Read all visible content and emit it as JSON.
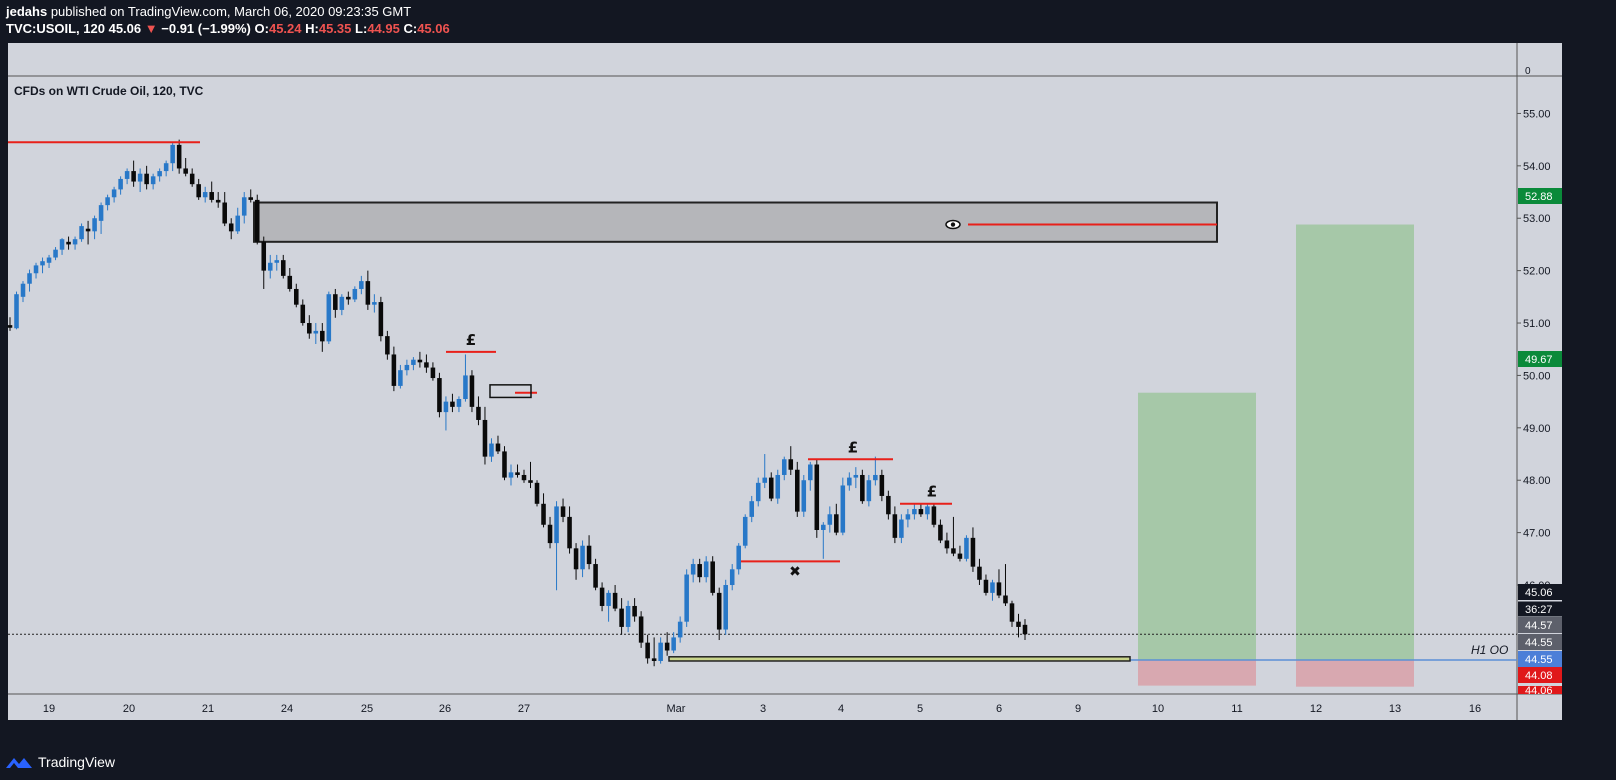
{
  "header": {
    "publisher": "jedahs",
    "published_text": "published on TradingView.com, March 06, 2020 09:23:35 GMT",
    "symbol": "TVC:USOIL, 120",
    "last": "45.06",
    "change_arrow": "▼",
    "change": "−0.91 (−1.99%)",
    "o_label": "O:",
    "o": "45.24",
    "h_label": "H:",
    "h": "45.35",
    "l_label": "L:",
    "l": "44.95",
    "c_label": "C:",
    "c": "45.06"
  },
  "chart_title": "CFDs on WTI Crude Oil, 120, TVC",
  "footer": {
    "brand": "TradingView",
    "logo_icon": "tradingview-logo-icon"
  },
  "colors": {
    "background": "#131722",
    "pane": "#d1d4dc",
    "up": "#2878c8",
    "down": "#0a0a0a",
    "red_line": "#e8201a",
    "green_zone": "#a6c8a8",
    "red_zone": "#d8a8b0",
    "zone_grey": "#b5b6ba",
    "yellow_box": "#c8d48a",
    "blue_line": "#5a8fd6"
  },
  "chart_data": {
    "type": "candlestick",
    "title": "CFDs on WTI Crude Oil, 120, TVC",
    "ylim": [
      43.92,
      55.6
    ],
    "y_ticks": [
      55.0,
      54.0,
      53.0,
      52.0,
      51.0,
      50.0,
      49.0,
      48.0,
      47.0,
      46.0
    ],
    "x_ticks": [
      "19",
      "20",
      "21",
      "24",
      "25",
      "26",
      "27",
      "Mar",
      "3",
      "4",
      "5",
      "6",
      "9",
      "10",
      "11",
      "12",
      "13",
      "16"
    ],
    "indicator_pane_label": "0",
    "last_price": 45.06,
    "countdown": "36:27",
    "series": [
      {
        "name": "TVC:USOIL",
        "values": [
          [
            50.96,
            51.11,
            50.85,
            50.91
          ],
          [
            50.9,
            51.6,
            50.88,
            51.55
          ],
          [
            51.5,
            51.8,
            51.4,
            51.75
          ],
          [
            51.75,
            52.02,
            51.6,
            51.95
          ],
          [
            51.95,
            52.15,
            51.85,
            52.1
          ],
          [
            52.1,
            52.25,
            51.95,
            52.18
          ],
          [
            52.15,
            52.3,
            52.05,
            52.25
          ],
          [
            52.25,
            52.45,
            52.2,
            52.4
          ],
          [
            52.4,
            52.62,
            52.3,
            52.6
          ],
          [
            52.55,
            52.65,
            52.4,
            52.5
          ],
          [
            52.5,
            52.65,
            52.4,
            52.6
          ],
          [
            52.6,
            52.9,
            52.55,
            52.85
          ],
          [
            52.8,
            52.95,
            52.5,
            52.75
          ],
          [
            52.75,
            53.05,
            52.6,
            53.0
          ],
          [
            52.95,
            53.3,
            52.7,
            53.25
          ],
          [
            53.25,
            53.45,
            53.15,
            53.4
          ],
          [
            53.4,
            53.6,
            53.3,
            53.55
          ],
          [
            53.55,
            53.8,
            53.45,
            53.75
          ],
          [
            53.75,
            53.95,
            53.65,
            53.9
          ],
          [
            53.9,
            54.1,
            53.6,
            53.7
          ],
          [
            53.7,
            53.95,
            53.5,
            53.85
          ],
          [
            53.85,
            54.0,
            53.55,
            53.65
          ],
          [
            53.65,
            53.85,
            53.55,
            53.8
          ],
          [
            53.8,
            53.95,
            53.7,
            53.9
          ],
          [
            53.9,
            54.1,
            53.8,
            54.05
          ],
          [
            54.05,
            54.45,
            53.9,
            54.4
          ],
          [
            54.4,
            54.5,
            53.85,
            53.95
          ],
          [
            53.95,
            54.15,
            53.8,
            53.85
          ],
          [
            53.85,
            53.95,
            53.6,
            53.65
          ],
          [
            53.65,
            53.75,
            53.35,
            53.4
          ],
          [
            53.4,
            53.6,
            53.3,
            53.5
          ],
          [
            53.5,
            53.7,
            53.3,
            53.35
          ],
          [
            53.35,
            53.5,
            53.2,
            53.3
          ],
          [
            53.3,
            53.5,
            52.85,
            52.9
          ],
          [
            52.9,
            53.0,
            52.6,
            52.75
          ],
          [
            52.75,
            53.2,
            52.7,
            53.05
          ],
          [
            53.05,
            53.5,
            52.9,
            53.4
          ],
          [
            53.4,
            53.55,
            53.3,
            53.35
          ],
          [
            53.35,
            53.45,
            52.5,
            52.55
          ],
          [
            52.55,
            52.65,
            51.65,
            52.0
          ],
          [
            52.0,
            52.3,
            51.85,
            52.15
          ],
          [
            52.15,
            52.3,
            52.0,
            52.2
          ],
          [
            52.2,
            52.3,
            51.85,
            51.9
          ],
          [
            51.9,
            52.05,
            51.6,
            51.65
          ],
          [
            51.65,
            51.75,
            51.3,
            51.35
          ],
          [
            51.35,
            51.45,
            50.95,
            51.0
          ],
          [
            51.0,
            51.15,
            50.7,
            50.8
          ],
          [
            50.8,
            51.0,
            50.6,
            50.85
          ],
          [
            50.85,
            51.0,
            50.45,
            50.65
          ],
          [
            50.65,
            51.6,
            50.6,
            51.55
          ],
          [
            51.55,
            51.65,
            51.1,
            51.25
          ],
          [
            51.25,
            51.55,
            51.15,
            51.5
          ],
          [
            51.5,
            51.6,
            51.35,
            51.45
          ],
          [
            51.45,
            51.7,
            51.4,
            51.65
          ],
          [
            51.65,
            51.9,
            51.55,
            51.8
          ],
          [
            51.8,
            52.0,
            51.25,
            51.35
          ],
          [
            51.35,
            51.55,
            51.2,
            51.4
          ],
          [
            51.4,
            51.5,
            50.65,
            50.75
          ],
          [
            50.75,
            50.85,
            50.3,
            50.4
          ],
          [
            50.4,
            50.55,
            49.7,
            49.8
          ],
          [
            49.8,
            50.2,
            49.75,
            50.1
          ],
          [
            50.1,
            50.3,
            50.0,
            50.2
          ],
          [
            50.2,
            50.35,
            50.1,
            50.3
          ],
          [
            50.3,
            50.45,
            50.15,
            50.25
          ],
          [
            50.25,
            50.4,
            50.05,
            50.15
          ],
          [
            50.15,
            50.25,
            49.9,
            49.95
          ],
          [
            49.95,
            50.05,
            49.2,
            49.3
          ],
          [
            49.3,
            49.6,
            48.95,
            49.5
          ],
          [
            49.5,
            49.65,
            49.3,
            49.4
          ],
          [
            49.4,
            49.6,
            49.3,
            49.55
          ],
          [
            49.55,
            50.4,
            49.5,
            50.0
          ],
          [
            50.0,
            50.1,
            49.3,
            49.4
          ],
          [
            49.4,
            49.6,
            49.05,
            49.15
          ],
          [
            49.15,
            49.4,
            48.3,
            48.45
          ],
          [
            48.45,
            48.8,
            48.35,
            48.7
          ],
          [
            48.7,
            48.85,
            48.5,
            48.55
          ],
          [
            48.55,
            48.65,
            48.0,
            48.05
          ],
          [
            48.05,
            48.3,
            47.9,
            48.15
          ],
          [
            48.15,
            48.3,
            48.05,
            48.1
          ],
          [
            48.1,
            48.2,
            47.95,
            48.0
          ],
          [
            48.0,
            48.35,
            47.85,
            47.95
          ],
          [
            47.95,
            48.0,
            47.5,
            47.55
          ],
          [
            47.55,
            47.75,
            47.1,
            47.15
          ],
          [
            47.15,
            47.3,
            46.7,
            46.8
          ],
          [
            46.8,
            47.6,
            45.9,
            47.5
          ],
          [
            47.5,
            47.65,
            47.2,
            47.3
          ],
          [
            47.3,
            47.5,
            46.6,
            46.7
          ],
          [
            46.7,
            46.8,
            46.1,
            46.3
          ],
          [
            46.3,
            46.85,
            46.15,
            46.75
          ],
          [
            46.75,
            46.95,
            46.3,
            46.4
          ],
          [
            46.4,
            46.5,
            45.9,
            45.95
          ],
          [
            45.95,
            46.05,
            45.5,
            45.6
          ],
          [
            45.6,
            45.9,
            45.3,
            45.85
          ],
          [
            45.85,
            46.0,
            45.5,
            45.55
          ],
          [
            45.55,
            45.75,
            45.05,
            45.2
          ],
          [
            45.2,
            45.7,
            45.1,
            45.6
          ],
          [
            45.6,
            45.75,
            45.3,
            45.4
          ],
          [
            45.4,
            45.5,
            44.8,
            44.9
          ],
          [
            44.9,
            45.05,
            44.5,
            44.6
          ],
          [
            44.6,
            45.0,
            44.45,
            44.55
          ],
          [
            44.55,
            45.0,
            44.5,
            44.9
          ],
          [
            44.9,
            45.1,
            44.65,
            44.75
          ],
          [
            44.75,
            45.1,
            44.7,
            45.0
          ],
          [
            45.0,
            45.4,
            44.9,
            45.3
          ],
          [
            45.3,
            46.3,
            45.2,
            46.2
          ],
          [
            46.2,
            46.5,
            46.05,
            46.4
          ],
          [
            46.4,
            46.5,
            46.05,
            46.15
          ],
          [
            46.15,
            46.55,
            46.05,
            46.45
          ],
          [
            46.45,
            46.55,
            45.8,
            45.85
          ],
          [
            45.85,
            45.95,
            44.95,
            45.15
          ],
          [
            45.15,
            46.1,
            45.05,
            46.0
          ],
          [
            46.0,
            46.4,
            45.9,
            46.3
          ],
          [
            46.3,
            46.8,
            46.2,
            46.75
          ],
          [
            46.75,
            47.35,
            46.7,
            47.3
          ],
          [
            47.3,
            47.7,
            47.2,
            47.6
          ],
          [
            47.6,
            48.05,
            47.5,
            47.95
          ],
          [
            47.95,
            48.5,
            47.85,
            48.05
          ],
          [
            48.05,
            48.15,
            47.6,
            47.65
          ],
          [
            47.65,
            48.2,
            47.55,
            48.1
          ],
          [
            48.1,
            48.45,
            48.0,
            48.4
          ],
          [
            48.4,
            48.65,
            48.1,
            48.2
          ],
          [
            48.2,
            48.35,
            47.3,
            47.4
          ],
          [
            47.4,
            48.1,
            47.3,
            48.0
          ],
          [
            48.0,
            48.35,
            47.8,
            48.3
          ],
          [
            48.3,
            48.4,
            46.9,
            47.05
          ],
          [
            47.05,
            47.2,
            46.5,
            47.15
          ],
          [
            47.15,
            47.5,
            47.0,
            47.35
          ],
          [
            47.35,
            47.55,
            46.95,
            47.0
          ],
          [
            47.0,
            48.05,
            46.95,
            47.9
          ],
          [
            47.9,
            48.15,
            47.8,
            48.05
          ],
          [
            48.05,
            48.25,
            47.85,
            48.1
          ],
          [
            48.1,
            48.2,
            47.55,
            47.6
          ],
          [
            47.6,
            48.1,
            47.5,
            48.0
          ],
          [
            48.0,
            48.45,
            47.9,
            48.1
          ],
          [
            48.1,
            48.2,
            47.6,
            47.7
          ],
          [
            47.7,
            47.8,
            47.25,
            47.35
          ],
          [
            47.35,
            47.5,
            46.8,
            46.9
          ],
          [
            46.9,
            47.35,
            46.8,
            47.25
          ],
          [
            47.25,
            47.45,
            47.1,
            47.35
          ],
          [
            47.35,
            47.55,
            47.25,
            47.45
          ],
          [
            47.45,
            47.55,
            47.3,
            47.35
          ],
          [
            47.35,
            47.55,
            47.25,
            47.5
          ],
          [
            47.5,
            47.55,
            47.1,
            47.15
          ],
          [
            47.15,
            47.25,
            46.8,
            46.85
          ],
          [
            46.85,
            47.0,
            46.6,
            46.7
          ],
          [
            46.7,
            47.3,
            46.55,
            46.6
          ],
          [
            46.6,
            46.75,
            46.45,
            46.5
          ],
          [
            46.5,
            46.95,
            46.45,
            46.9
          ],
          [
            46.9,
            47.1,
            46.25,
            46.35
          ],
          [
            46.35,
            46.5,
            46.0,
            46.1
          ],
          [
            46.1,
            46.2,
            45.8,
            45.85
          ],
          [
            45.85,
            46.1,
            45.7,
            46.05
          ],
          [
            46.05,
            46.3,
            45.75,
            45.8
          ],
          [
            45.8,
            46.4,
            45.6,
            45.65
          ],
          [
            45.65,
            45.7,
            45.2,
            45.3
          ],
          [
            45.3,
            45.45,
            45.0,
            45.2
          ],
          [
            45.24,
            45.35,
            44.95,
            45.06
          ]
        ]
      }
    ],
    "annotations": {
      "resistance_zone": [
        52.55,
        53.3
      ],
      "zone_level": 52.88,
      "eye_icon": "eye-icon",
      "pound_labels": [
        "£",
        "£",
        "£"
      ],
      "cross_label": "✖",
      "yellow_zone": [
        44.55,
        44.63
      ],
      "long_positions": [
        {
          "target": 49.67,
          "entry": 44.57,
          "stop": 44.08
        },
        {
          "target": 52.88,
          "entry": 44.57,
          "stop": 44.06
        }
      ],
      "h1_label": "H1 OO"
    },
    "axis_price_labels": [
      {
        "text": "52.88",
        "bg": "#0a8a3a"
      },
      {
        "text": "49.67",
        "bg": "#0a8a3a"
      },
      {
        "text": "45.06",
        "bg": "#131722"
      },
      {
        "text": "36:27",
        "bg": "#131722"
      },
      {
        "text": "44.57",
        "bg": "#5d606b"
      },
      {
        "text": "44.55",
        "bg": "#5d606b"
      },
      {
        "text": "44.55",
        "bg": "#4c7fd8"
      },
      {
        "text": "44.08",
        "bg": "#e0181a"
      },
      {
        "text": "44.06",
        "bg": "#e0181a"
      }
    ]
  }
}
